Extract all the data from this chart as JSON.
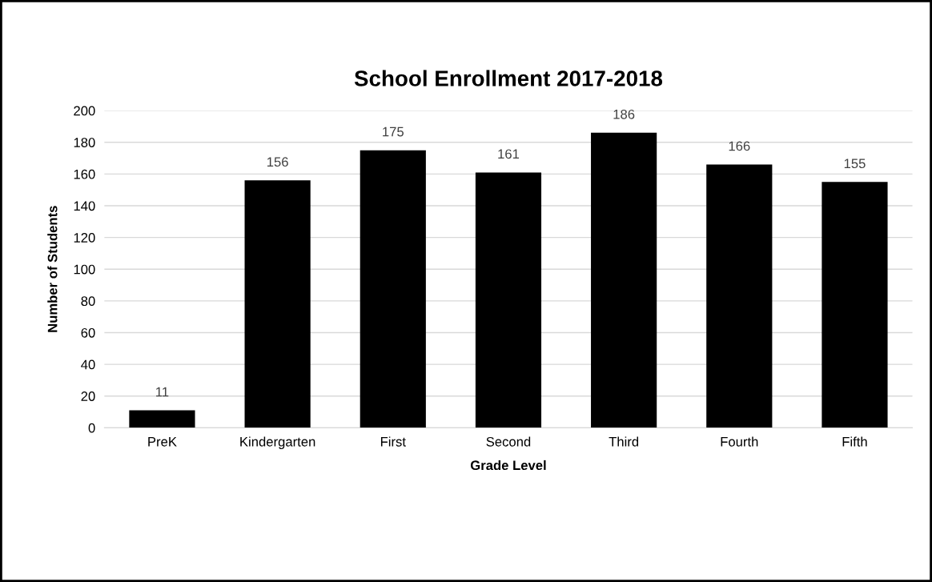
{
  "chart_data": {
    "type": "bar",
    "title": "School Enrollment 2017-2018",
    "xlabel": "Grade Level",
    "ylabel": "Number of Students",
    "categories": [
      "PreK",
      "Kindergarten",
      "First",
      "Second",
      "Third",
      "Fourth",
      "Fifth"
    ],
    "values": [
      11,
      156,
      175,
      161,
      186,
      166,
      155
    ],
    "color": "#000000",
    "ylim": [
      0,
      200
    ],
    "yticks": [
      0,
      20,
      40,
      60,
      80,
      100,
      120,
      140,
      160,
      180,
      200
    ],
    "grid": "y",
    "data_labels": true,
    "legend": false
  }
}
